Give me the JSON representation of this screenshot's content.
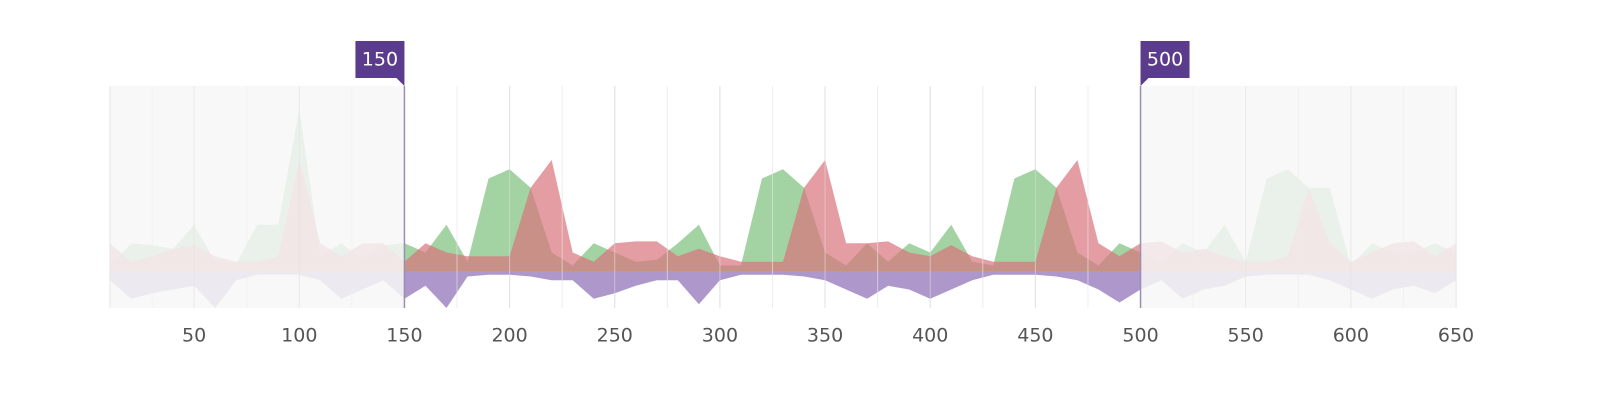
{
  "chart_data": {
    "type": "area",
    "x": [
      10,
      20,
      30,
      40,
      50,
      60,
      70,
      80,
      90,
      100,
      110,
      120,
      130,
      140,
      150,
      160,
      170,
      180,
      190,
      200,
      210,
      220,
      230,
      240,
      250,
      260,
      270,
      280,
      290,
      300,
      310,
      320,
      330,
      340,
      350,
      360,
      370,
      380,
      390,
      400,
      410,
      420,
      430,
      440,
      450,
      460,
      470,
      480,
      490,
      500,
      510,
      520,
      530,
      540,
      550,
      560,
      570,
      580,
      590,
      600,
      610,
      620,
      630,
      640,
      650
    ],
    "series": [
      {
        "color": "#7cbf7c",
        "values": [
          3,
          15,
          14,
          12,
          25,
          5,
          4,
          25,
          25,
          88,
          8,
          15,
          6,
          14,
          15,
          10,
          25,
          5,
          50,
          55,
          45,
          10,
          3,
          15,
          10,
          5,
          6,
          15,
          25,
          3,
          3,
          50,
          55,
          45,
          10,
          3,
          15,
          5,
          15,
          10,
          25,
          5,
          3,
          50,
          55,
          45,
          10,
          3,
          15,
          10,
          5,
          15,
          10,
          25,
          5,
          50,
          55,
          45,
          45,
          3,
          15,
          10,
          10,
          15,
          10
        ]
      },
      {
        "color": "#d9737a",
        "values": [
          15,
          5,
          8,
          12,
          14,
          8,
          5,
          5,
          8,
          60,
          15,
          8,
          15,
          15,
          5,
          15,
          10,
          8,
          8,
          8,
          45,
          60,
          10,
          5,
          15,
          16,
          16,
          8,
          12,
          8,
          5,
          5,
          5,
          45,
          60,
          15,
          15,
          16,
          10,
          8,
          14,
          8,
          5,
          5,
          5,
          45,
          60,
          15,
          8,
          15,
          16,
          10,
          12,
          8,
          5,
          5,
          8,
          45,
          15,
          5,
          10,
          15,
          16,
          8,
          15
        ]
      },
      {
        "color": "#8b6bb5",
        "values": [
          -5,
          -15,
          -12,
          -10,
          -8,
          -20,
          -5,
          -2,
          -2,
          -2,
          -5,
          -15,
          -10,
          -5,
          -15,
          -8,
          -20,
          -3,
          -2,
          -2,
          -3,
          -5,
          -5,
          -15,
          -12,
          -8,
          -5,
          -5,
          -18,
          -5,
          -2,
          -2,
          -2,
          -3,
          -5,
          -10,
          -15,
          -8,
          -10,
          -15,
          -10,
          -5,
          -2,
          -2,
          -2,
          -3,
          -5,
          -10,
          -17,
          -10,
          -5,
          -15,
          -10,
          -8,
          -3,
          -2,
          -2,
          -2,
          -5,
          -10,
          -15,
          -10,
          -8,
          -12,
          -5
        ]
      }
    ],
    "xlim": [
      10,
      650
    ],
    "xticks": [
      50,
      100,
      150,
      200,
      250,
      300,
      350,
      400,
      450,
      500,
      550,
      600,
      650
    ],
    "ylim": [
      -20,
      100
    ],
    "grid": true,
    "range": [
      150,
      500
    ]
  }
}
